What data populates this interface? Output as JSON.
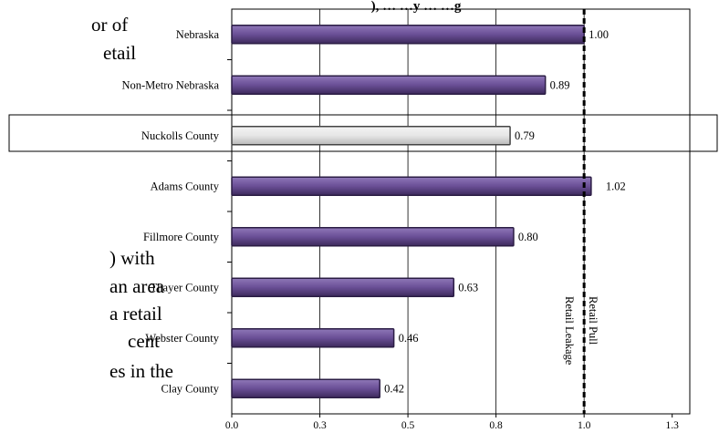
{
  "page_text": {
    "left_fragments": [
      "or of",
      "etail",
      ") with",
      "an area",
      "a retail",
      "cent",
      "es in the"
    ]
  },
  "chart_data": {
    "type": "bar",
    "orientation": "horizontal",
    "title_fragment": "), … …y … …g",
    "categories": [
      "Nebraska",
      "Non-Metro Nebraska",
      "Nuckolls County",
      "Adams County",
      "Fillmore County",
      "Thayer County",
      "Webster County",
      "Clay County"
    ],
    "values": [
      1.0,
      0.89,
      0.79,
      1.02,
      0.8,
      0.63,
      0.46,
      0.42
    ],
    "value_labels": [
      "1.00",
      "0.89",
      "0.79",
      "1.02",
      "0.80",
      "0.63",
      "0.46",
      "0.42"
    ],
    "highlight_category": "Nuckolls County",
    "xlim": [
      0.0,
      1.3
    ],
    "xticks": [
      0.0,
      0.25,
      0.5,
      0.75,
      1.0,
      1.25
    ],
    "xtick_labels": [
      "0.0",
      "0.3",
      "0.5",
      "0.8",
      "1.0",
      "1.3"
    ],
    "reference_line": 1.0,
    "reference_labels": {
      "left": "Retail Leakage",
      "right": "Retail Pull"
    },
    "grid": true,
    "colors": {
      "bar": "#6a4f96",
      "bar_edge": "#2b1d44",
      "highlight_bar": "#e6e6e6",
      "highlight_edge": "#444444"
    }
  }
}
